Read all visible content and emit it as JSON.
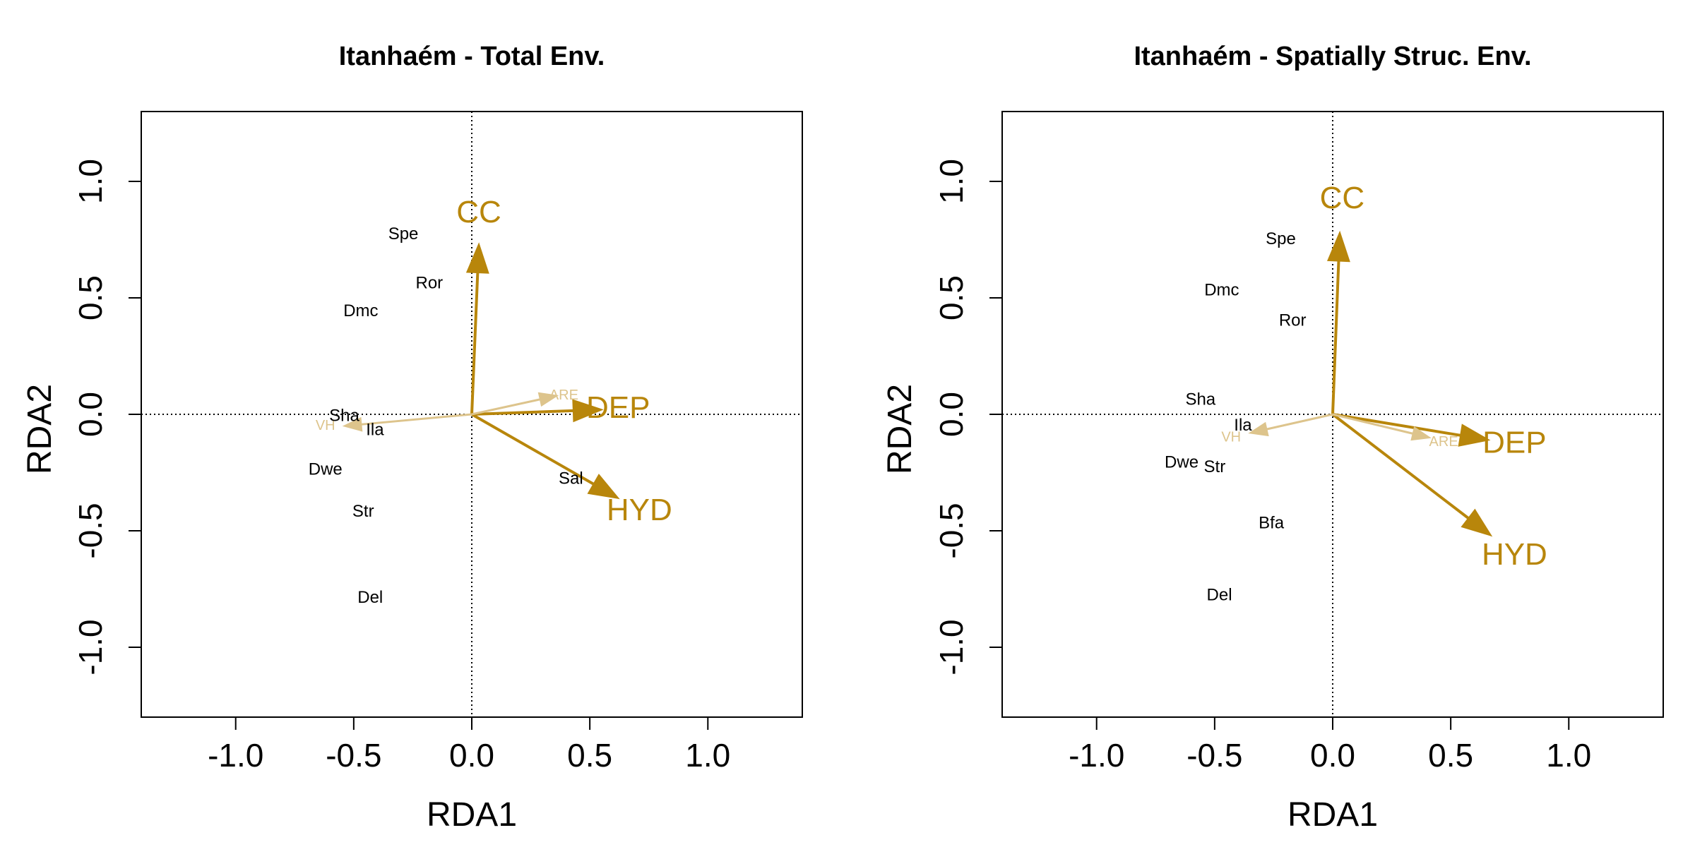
{
  "colors": {
    "strong": "#B8860B",
    "weak": "#DDC48C",
    "text": "#000000"
  },
  "chart_data": [
    {
      "type": "scatter",
      "subtype": "rda-biplot",
      "title": "Itanhaém - Total Env.",
      "xlabel": "RDA1",
      "ylabel": "RDA2",
      "xlim": [
        -1.4,
        1.4
      ],
      "ylim": [
        -1.3,
        1.3
      ],
      "xticks": [
        -1.0,
        -0.5,
        0.0,
        0.5,
        1.0
      ],
      "yticks": [
        -1.0,
        -0.5,
        0.0,
        0.5,
        1.0
      ],
      "tick_labels_x": [
        "-1.0",
        "-0.5",
        "0.0",
        "0.5",
        "1.0"
      ],
      "tick_labels_y": [
        "-1.0",
        "-0.5",
        "0.0",
        "0.5",
        "1.0"
      ],
      "reference_lines": {
        "x": 0,
        "y": 0,
        "style": "dotted"
      },
      "species": [
        {
          "label": "Spe",
          "x": -0.29,
          "y": 0.77
        },
        {
          "label": "Ror",
          "x": -0.18,
          "y": 0.56
        },
        {
          "label": "Dmc",
          "x": -0.47,
          "y": 0.44
        },
        {
          "label": "Sha",
          "x": -0.54,
          "y": -0.01
        },
        {
          "label": "Ila",
          "x": -0.41,
          "y": -0.07
        },
        {
          "label": "Dwe",
          "x": -0.62,
          "y": -0.24
        },
        {
          "label": "Str",
          "x": -0.46,
          "y": -0.42
        },
        {
          "label": "Del",
          "x": -0.43,
          "y": -0.79
        },
        {
          "label": "Sal",
          "x": 0.42,
          "y": -0.28
        }
      ],
      "env_vectors": [
        {
          "label": "CC",
          "x": 0.03,
          "y": 0.73,
          "emphasis": "strong",
          "label_x": 0.03,
          "label_y": 0.86
        },
        {
          "label": "DEP",
          "x": 0.55,
          "y": 0.02,
          "emphasis": "strong",
          "label_x": 0.62,
          "label_y": 0.02
        },
        {
          "label": "HYD",
          "x": 0.62,
          "y": -0.36,
          "emphasis": "strong",
          "label_x": 0.71,
          "label_y": -0.42
        },
        {
          "label": "ARE",
          "x": 0.36,
          "y": 0.08,
          "emphasis": "weak",
          "label_x": 0.39,
          "label_y": 0.08
        },
        {
          "label": "VH",
          "x": -0.54,
          "y": -0.05,
          "emphasis": "weak",
          "label_x": -0.62,
          "label_y": -0.05
        }
      ]
    },
    {
      "type": "scatter",
      "subtype": "rda-biplot",
      "title": "Itanhaém - Spatially Struc. Env.",
      "xlabel": "RDA1",
      "ylabel": "RDA2",
      "xlim": [
        -1.4,
        1.4
      ],
      "ylim": [
        -1.3,
        1.3
      ],
      "xticks": [
        -1.0,
        -0.5,
        0.0,
        0.5,
        1.0
      ],
      "yticks": [
        -1.0,
        -0.5,
        0.0,
        0.5,
        1.0
      ],
      "tick_labels_x": [
        "-1.0",
        "-0.5",
        "0.0",
        "0.5",
        "1.0"
      ],
      "tick_labels_y": [
        "-1.0",
        "-0.5",
        "0.0",
        "0.5",
        "1.0"
      ],
      "reference_lines": {
        "x": 0,
        "y": 0,
        "style": "dotted"
      },
      "species": [
        {
          "label": "Spe",
          "x": -0.22,
          "y": 0.75
        },
        {
          "label": "Dmc",
          "x": -0.47,
          "y": 0.53
        },
        {
          "label": "Ror",
          "x": -0.17,
          "y": 0.4
        },
        {
          "label": "Sha",
          "x": -0.56,
          "y": 0.06
        },
        {
          "label": "Ila",
          "x": -0.38,
          "y": -0.05
        },
        {
          "label": "Dwe",
          "x": -0.64,
          "y": -0.21
        },
        {
          "label": "Str",
          "x": -0.5,
          "y": -0.23
        },
        {
          "label": "Bfa",
          "x": -0.26,
          "y": -0.47
        },
        {
          "label": "Del",
          "x": -0.48,
          "y": -0.78
        }
      ],
      "env_vectors": [
        {
          "label": "CC",
          "x": 0.03,
          "y": 0.78,
          "emphasis": "strong",
          "label_x": 0.04,
          "label_y": 0.92
        },
        {
          "label": "DEP",
          "x": 0.66,
          "y": -0.11,
          "emphasis": "strong",
          "label_x": 0.77,
          "label_y": -0.13
        },
        {
          "label": "HYD",
          "x": 0.67,
          "y": -0.52,
          "emphasis": "strong",
          "label_x": 0.77,
          "label_y": -0.61
        },
        {
          "label": "ARE",
          "x": 0.41,
          "y": -0.1,
          "emphasis": "weak",
          "label_x": 0.47,
          "label_y": -0.12
        },
        {
          "label": "VH",
          "x": -0.35,
          "y": -0.08,
          "emphasis": "weak",
          "label_x": -0.43,
          "label_y": -0.1
        }
      ]
    }
  ]
}
